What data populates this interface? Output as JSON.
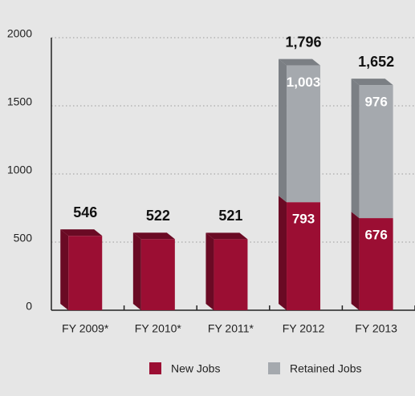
{
  "chart_data": {
    "type": "bar",
    "categories": [
      "FY 2009*",
      "FY 2010*",
      "FY 2011*",
      "FY 2012",
      "FY 2013"
    ],
    "series": [
      {
        "name": "New Jobs",
        "color": "#9b0e33",
        "side": "#6a0a24",
        "values": [
          546,
          522,
          521,
          793,
          676
        ]
      },
      {
        "name": "Retained Jobs",
        "color": "#a5a9ae",
        "side": "#7b7f84",
        "values": [
          null,
          null,
          null,
          1003,
          976
        ],
        "value_labels": [
          null,
          null,
          null,
          "1,003",
          "976"
        ]
      }
    ],
    "total_labels": [
      "546",
      "522",
      "521",
      "1,796",
      "1,652"
    ],
    "ylim": [
      0,
      2000
    ],
    "yticks": [
      0,
      500,
      1000,
      1500,
      2000
    ],
    "grid": true,
    "legend": "bottom"
  }
}
